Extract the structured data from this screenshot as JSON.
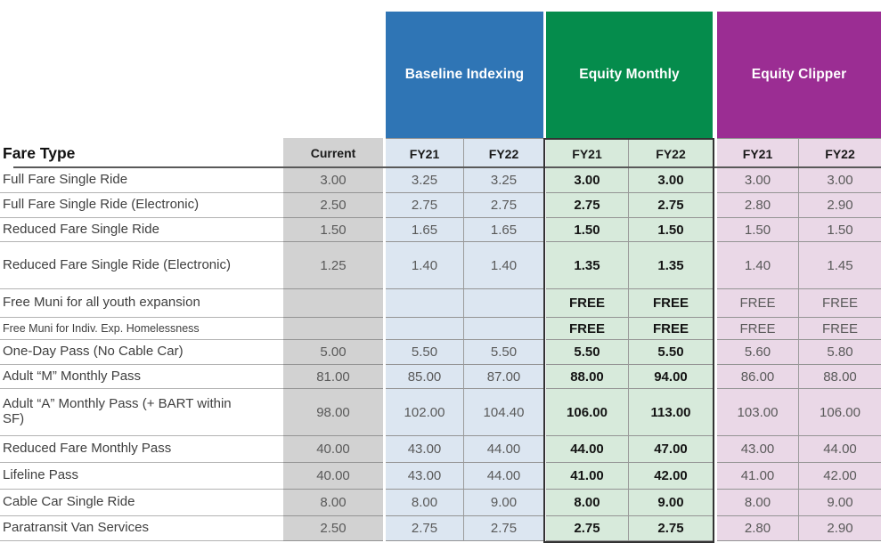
{
  "table": {
    "corner_header": "Fare Type",
    "current_header": "Current",
    "sections": [
      {
        "name": "Baseline Indexing",
        "col_headers": [
          "FY21",
          "FY22"
        ]
      },
      {
        "name": "Equity Monthly",
        "col_headers": [
          "FY21",
          "FY22"
        ],
        "highlighted": true
      },
      {
        "name": "Equity Clipper",
        "col_headers": [
          "FY21",
          "FY22"
        ]
      }
    ],
    "rows": [
      {
        "label": "Full Fare Single Ride",
        "current": "3.00",
        "baseline_fy21": "3.25",
        "baseline_fy22": "3.25",
        "equity_monthly_fy21": "3.00",
        "equity_monthly_fy22": "3.00",
        "equity_clipper_fy21": "3.00",
        "equity_clipper_fy22": "3.00"
      },
      {
        "label": "Full Fare Single Ride (Electronic)",
        "current": "2.50",
        "baseline_fy21": "2.75",
        "baseline_fy22": "2.75",
        "equity_monthly_fy21": "2.75",
        "equity_monthly_fy22": "2.75",
        "equity_clipper_fy21": "2.80",
        "equity_clipper_fy22": "2.90"
      },
      {
        "label": "Reduced Fare Single Ride",
        "current": "1.50",
        "baseline_fy21": "1.65",
        "baseline_fy22": "1.65",
        "equity_monthly_fy21": "1.50",
        "equity_monthly_fy22": "1.50",
        "equity_clipper_fy21": "1.50",
        "equity_clipper_fy22": "1.50"
      },
      {
        "label": "Reduced Fare Single Ride (Electronic)",
        "current": "1.25",
        "baseline_fy21": "1.40",
        "baseline_fy22": "1.40",
        "equity_monthly_fy21": "1.35",
        "equity_monthly_fy22": "1.35",
        "equity_clipper_fy21": "1.40",
        "equity_clipper_fy22": "1.45"
      },
      {
        "label": "Free Muni for all youth expansion",
        "current": "",
        "baseline_fy21": "",
        "baseline_fy22": "",
        "equity_monthly_fy21": "FREE",
        "equity_monthly_fy22": "FREE",
        "equity_clipper_fy21": "FREE",
        "equity_clipper_fy22": "FREE"
      },
      {
        "label": "Free Muni for Indiv. Exp. Homelessness",
        "current": "",
        "baseline_fy21": "",
        "baseline_fy22": "",
        "equity_monthly_fy21": "FREE",
        "equity_monthly_fy22": "FREE",
        "equity_clipper_fy21": "FREE",
        "equity_clipper_fy22": "FREE"
      },
      {
        "label": "One-Day Pass (No Cable Car)",
        "current": "5.00",
        "baseline_fy21": "5.50",
        "baseline_fy22": "5.50",
        "equity_monthly_fy21": "5.50",
        "equity_monthly_fy22": "5.50",
        "equity_clipper_fy21": "5.60",
        "equity_clipper_fy22": "5.80"
      },
      {
        "label": "Adult “M” Monthly Pass",
        "current": "81.00",
        "baseline_fy21": "85.00",
        "baseline_fy22": "87.00",
        "equity_monthly_fy21": "88.00",
        "equity_monthly_fy22": "94.00",
        "equity_clipper_fy21": "86.00",
        "equity_clipper_fy22": "88.00"
      },
      {
        "label": "Adult “A” Monthly Pass (+ BART within SF)",
        "current": "98.00",
        "baseline_fy21": "102.00",
        "baseline_fy22": "104.40",
        "equity_monthly_fy21": "106.00",
        "equity_monthly_fy22": "113.00",
        "equity_clipper_fy21": "103.00",
        "equity_clipper_fy22": "106.00"
      },
      {
        "label": "Reduced Fare Monthly Pass",
        "current": "40.00",
        "baseline_fy21": "43.00",
        "baseline_fy22": "44.00",
        "equity_monthly_fy21": "44.00",
        "equity_monthly_fy22": "47.00",
        "equity_clipper_fy21": "43.00",
        "equity_clipper_fy22": "44.00"
      },
      {
        "label": "Lifeline Pass",
        "current": "40.00",
        "baseline_fy21": "43.00",
        "baseline_fy22": "44.00",
        "equity_monthly_fy21": "41.00",
        "equity_monthly_fy22": "42.00",
        "equity_clipper_fy21": "41.00",
        "equity_clipper_fy22": "42.00"
      },
      {
        "label": "Cable Car Single Ride",
        "current": "8.00",
        "baseline_fy21": "8.00",
        "baseline_fy22": "9.00",
        "equity_monthly_fy21": "8.00",
        "equity_monthly_fy22": "9.00",
        "equity_clipper_fy21": "8.00",
        "equity_clipper_fy22": "9.00"
      },
      {
        "label": "Paratransit Van Services",
        "current": "2.50",
        "baseline_fy21": "2.75",
        "baseline_fy22": "2.75",
        "equity_monthly_fy21": "2.75",
        "equity_monthly_fy22": "2.75",
        "equity_clipper_fy21": "2.80",
        "equity_clipper_fy22": "2.90"
      }
    ]
  },
  "colors": {
    "baseline_blue": "#2F75B5",
    "equity_green": "#058C4C",
    "clipper_purple": "#9B2D93",
    "current_gray": "#D2D2D2",
    "baseline_light": "#DCE6F1",
    "equity_light": "#D7EADB",
    "clipper_light": "#EAD8E7",
    "highlight_border": "#333333"
  }
}
